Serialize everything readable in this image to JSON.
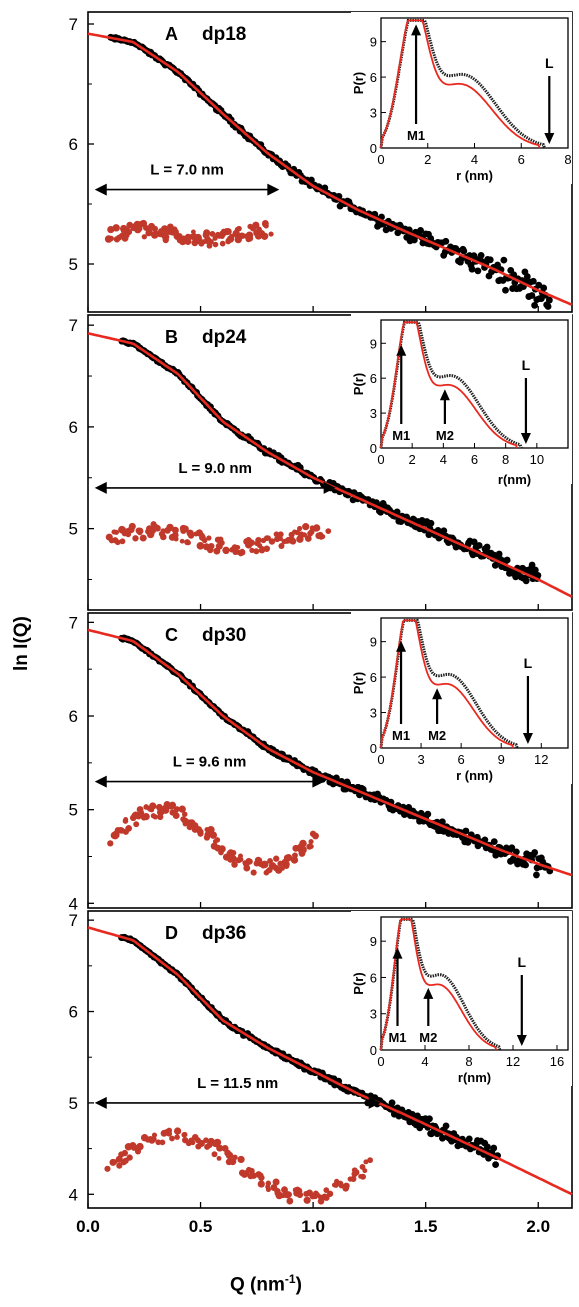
{
  "figure": {
    "y_axis_label": "ln I(Q)",
    "x_axis_label": "Q (nm",
    "x_axis_label_sup": "-1",
    "x_axis_label_end": ")",
    "x_ticks": [
      "0.0",
      "0.5",
      "1.0",
      "1.5",
      "2.0"
    ],
    "colors": {
      "fit": "#e8291f",
      "data": "#000000",
      "molecule": "#c0392b"
    }
  },
  "chart_data": [
    {
      "type": "scatter",
      "panel": "A",
      "label": "dp18",
      "ylim": [
        4.6,
        7.1
      ],
      "y_ticks": [
        "7",
        "6",
        "5"
      ],
      "y_tick_values": [
        7,
        6,
        5
      ],
      "q_data_range": [
        0.1,
        2.05
      ],
      "fit": {
        "x": [
          0.0,
          0.2,
          0.4,
          0.6,
          0.8,
          1.0,
          1.2,
          1.4,
          1.6,
          1.8,
          2.0,
          2.15
        ],
        "y": [
          6.92,
          6.85,
          6.6,
          6.25,
          5.92,
          5.65,
          5.45,
          5.28,
          5.12,
          4.96,
          4.78,
          4.66
        ]
      },
      "length_annotation": "L = 7.0 nm",
      "length_q_span": [
        0.03,
        0.85
      ],
      "length_arrow_y": 5.62,
      "inset": {
        "ylabel": "P(r)",
        "xlabel": "r (nm)",
        "xlim": [
          0,
          8
        ],
        "x_ticks": [
          "0",
          "2",
          "4",
          "6",
          "8"
        ],
        "x_tick_values": [
          0,
          2,
          4,
          6,
          8
        ],
        "ylim": [
          0,
          11
        ],
        "y_ticks": [
          "0",
          "3",
          "6",
          "9"
        ],
        "y_tick_values": [
          0,
          3,
          6,
          9
        ],
        "dmax": 7.0,
        "markers": [
          {
            "name": "M1",
            "r": 1.5
          }
        ],
        "L_label": "L",
        "L_r": 7.2
      }
    },
    {
      "type": "scatter",
      "panel": "B",
      "label": "dp24",
      "ylim": [
        4.2,
        7.1
      ],
      "y_ticks": [
        "7",
        "6",
        "5"
      ],
      "y_tick_values": [
        7,
        6,
        5
      ],
      "q_data_range": [
        0.15,
        2.0
      ],
      "fit": {
        "x": [
          0.0,
          0.2,
          0.4,
          0.6,
          0.8,
          1.0,
          1.2,
          1.4,
          1.6,
          1.8,
          2.0,
          2.15
        ],
        "y": [
          6.92,
          6.82,
          6.52,
          6.05,
          5.75,
          5.5,
          5.3,
          5.1,
          4.9,
          4.7,
          4.5,
          4.33
        ]
      },
      "length_annotation": "L = 9.0 nm",
      "length_q_span": [
        0.03,
        1.1
      ],
      "length_arrow_y": 5.4,
      "inset": {
        "ylabel": "P(r)",
        "xlabel": "r(nm)",
        "xlim": [
          0,
          12
        ],
        "x_ticks": [
          "0",
          "2",
          "4",
          "6",
          "8",
          "10"
        ],
        "x_tick_values": [
          0,
          2,
          4,
          6,
          8,
          10
        ],
        "ylim": [
          0,
          11
        ],
        "y_ticks": [
          "0",
          "3",
          "6",
          "9"
        ],
        "y_tick_values": [
          0,
          3,
          6,
          9
        ],
        "dmax": 9.0,
        "markers": [
          {
            "name": "M1",
            "r": 1.3
          },
          {
            "name": "M2",
            "r": 4.1
          }
        ],
        "L_label": "L",
        "L_r": 9.3
      }
    },
    {
      "type": "scatter",
      "panel": "C",
      "label": "dp30",
      "ylim": [
        3.95,
        7.1
      ],
      "y_ticks": [
        "7",
        "6",
        "5",
        "4"
      ],
      "y_tick_values": [
        7,
        6,
        5,
        4
      ],
      "q_data_range": [
        0.15,
        2.05
      ],
      "fit": {
        "x": [
          0.0,
          0.2,
          0.4,
          0.6,
          0.8,
          1.0,
          1.2,
          1.4,
          1.6,
          1.8,
          2.0,
          2.15
        ],
        "y": [
          6.92,
          6.8,
          6.45,
          6.0,
          5.65,
          5.4,
          5.2,
          5.0,
          4.8,
          4.6,
          4.42,
          4.3
        ]
      },
      "length_annotation": "L = 9.6 nm",
      "length_q_span": [
        0.03,
        1.05
      ],
      "length_arrow_y": 5.3,
      "inset": {
        "ylabel": "P(r)",
        "xlabel": "r (nm)",
        "xlim": [
          0,
          14
        ],
        "x_ticks": [
          "0",
          "3",
          "6",
          "9",
          "12"
        ],
        "x_tick_values": [
          0,
          3,
          6,
          9,
          12
        ],
        "ylim": [
          0,
          11
        ],
        "y_ticks": [
          "0",
          "3",
          "6",
          "9"
        ],
        "y_tick_values": [
          0,
          3,
          6,
          9
        ],
        "dmax": 10.2,
        "markers": [
          {
            "name": "M1",
            "r": 1.5
          },
          {
            "name": "M2",
            "r": 4.2
          }
        ],
        "L_label": "L",
        "L_r": 11.0
      }
    },
    {
      "type": "scatter",
      "panel": "D",
      "label": "dp36",
      "ylim": [
        3.85,
        7.1
      ],
      "y_ticks": [
        "7",
        "6",
        "5",
        "4"
      ],
      "y_tick_values": [
        7,
        6,
        5,
        4
      ],
      "q_data_range": [
        0.15,
        1.82
      ],
      "fit": {
        "x": [
          0.0,
          0.2,
          0.4,
          0.6,
          0.8,
          1.0,
          1.2,
          1.4,
          1.6,
          1.8,
          2.0,
          2.15
        ],
        "y": [
          6.92,
          6.78,
          6.4,
          5.9,
          5.6,
          5.35,
          5.1,
          4.88,
          4.65,
          4.42,
          4.18,
          4.0
        ]
      },
      "length_annotation": "L = 11.5 nm",
      "length_q_span": [
        0.03,
        1.3
      ],
      "length_arrow_y": 5.0,
      "inset": {
        "ylabel": "P(r)",
        "xlabel": "r(nm)",
        "xlim": [
          0,
          17
        ],
        "x_ticks": [
          "0",
          "4",
          "8",
          "12",
          "16"
        ],
        "x_tick_values": [
          0,
          4,
          8,
          12,
          16
        ],
        "ylim": [
          0,
          11
        ],
        "y_ticks": [
          "0",
          "3",
          "6",
          "9"
        ],
        "y_tick_values": [
          0,
          3,
          6,
          9
        ],
        "dmax": 10.8,
        "markers": [
          {
            "name": "M1",
            "r": 1.5
          },
          {
            "name": "M2",
            "r": 4.3
          }
        ],
        "L_label": "L",
        "L_r": 12.8
      }
    }
  ]
}
